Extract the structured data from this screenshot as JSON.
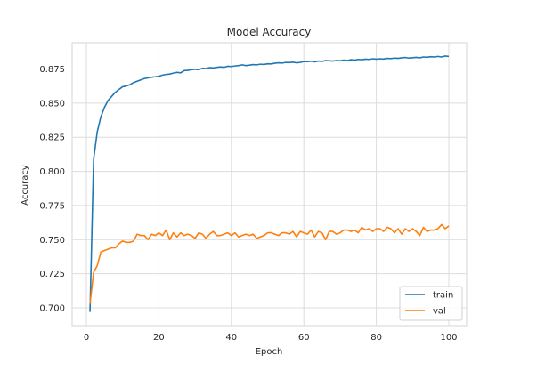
{
  "chart_data": {
    "type": "line",
    "title": "Model Accuracy",
    "xlabel": "Epoch",
    "ylabel": "Accuracy",
    "xlim": [
      -4,
      105
    ],
    "ylim": [
      0.687,
      0.891
    ],
    "xticks": [
      0,
      20,
      40,
      60,
      80,
      100
    ],
    "xtick_labels": [
      "0",
      "20",
      "40",
      "60",
      "80",
      "100"
    ],
    "yticks": [
      0.7,
      0.725,
      0.75,
      0.775,
      0.8,
      0.825,
      0.85,
      0.875
    ],
    "ytick_labels": [
      "0.700",
      "0.725",
      "0.750",
      "0.775",
      "0.800",
      "0.825",
      "0.850",
      "0.875"
    ],
    "grid": true,
    "legend_position": "lower right",
    "series": [
      {
        "name": "train",
        "color": "#1f77b4",
        "x": [
          1,
          2,
          3,
          4,
          5,
          6,
          7,
          8,
          9,
          10,
          11,
          12,
          13,
          14,
          15,
          16,
          17,
          18,
          19,
          20,
          21,
          22,
          23,
          24,
          25,
          26,
          27,
          28,
          29,
          30,
          31,
          32,
          33,
          34,
          35,
          36,
          37,
          38,
          39,
          40,
          41,
          42,
          43,
          44,
          45,
          46,
          47,
          48,
          49,
          50,
          51,
          52,
          53,
          54,
          55,
          56,
          57,
          58,
          59,
          60,
          61,
          62,
          63,
          64,
          65,
          66,
          67,
          68,
          69,
          70,
          71,
          72,
          73,
          74,
          75,
          76,
          77,
          78,
          79,
          80,
          81,
          82,
          83,
          84,
          85,
          86,
          87,
          88,
          89,
          90,
          91,
          92,
          93,
          94,
          95,
          96,
          97,
          98,
          99,
          100
        ],
        "values": [
          0.697,
          0.809,
          0.829,
          0.84,
          0.847,
          0.852,
          0.855,
          0.858,
          0.86,
          0.862,
          0.8625,
          0.8635,
          0.865,
          0.866,
          0.867,
          0.868,
          0.8685,
          0.869,
          0.8693,
          0.8697,
          0.8705,
          0.871,
          0.8713,
          0.872,
          0.8725,
          0.8722,
          0.8738,
          0.874,
          0.8745,
          0.8748,
          0.8745,
          0.8755,
          0.8753,
          0.876,
          0.8758,
          0.8762,
          0.8765,
          0.8762,
          0.877,
          0.8768,
          0.8772,
          0.8775,
          0.878,
          0.8775,
          0.8778,
          0.8782,
          0.878,
          0.8785,
          0.8783,
          0.8788,
          0.8787,
          0.8792,
          0.8795,
          0.8793,
          0.8798,
          0.8797,
          0.88,
          0.8795,
          0.8798,
          0.8805,
          0.8803,
          0.8807,
          0.8802,
          0.8808,
          0.8806,
          0.8812,
          0.881,
          0.8808,
          0.8812,
          0.881,
          0.8815,
          0.8812,
          0.8818,
          0.8815,
          0.882,
          0.8818,
          0.8822,
          0.882,
          0.8825,
          0.8822,
          0.8825,
          0.8823,
          0.8828,
          0.8826,
          0.883,
          0.8828,
          0.8832,
          0.8834,
          0.883,
          0.8833,
          0.8835,
          0.8832,
          0.8838,
          0.8836,
          0.884,
          0.8838,
          0.8842,
          0.8838,
          0.8845,
          0.8842
        ]
      },
      {
        "name": "val",
        "color": "#ff7f0e",
        "x": [
          1,
          2,
          3,
          4,
          5,
          6,
          7,
          8,
          9,
          10,
          11,
          12,
          13,
          14,
          15,
          16,
          17,
          18,
          19,
          20,
          21,
          22,
          23,
          24,
          25,
          26,
          27,
          28,
          29,
          30,
          31,
          32,
          33,
          34,
          35,
          36,
          37,
          38,
          39,
          40,
          41,
          42,
          43,
          44,
          45,
          46,
          47,
          48,
          49,
          50,
          51,
          52,
          53,
          54,
          55,
          56,
          57,
          58,
          59,
          60,
          61,
          62,
          63,
          64,
          65,
          66,
          67,
          68,
          69,
          70,
          71,
          72,
          73,
          74,
          75,
          76,
          77,
          78,
          79,
          80,
          81,
          82,
          83,
          84,
          85,
          86,
          87,
          88,
          89,
          90,
          91,
          92,
          93,
          94,
          95,
          96,
          97,
          98,
          99,
          100
        ],
        "values": [
          0.703,
          0.726,
          0.731,
          0.741,
          0.742,
          0.743,
          0.744,
          0.744,
          0.747,
          0.749,
          0.748,
          0.748,
          0.749,
          0.754,
          0.753,
          0.753,
          0.75,
          0.754,
          0.753,
          0.755,
          0.753,
          0.757,
          0.75,
          0.755,
          0.752,
          0.755,
          0.753,
          0.754,
          0.753,
          0.751,
          0.755,
          0.754,
          0.751,
          0.754,
          0.756,
          0.753,
          0.753,
          0.754,
          0.755,
          0.753,
          0.755,
          0.752,
          0.753,
          0.754,
          0.753,
          0.754,
          0.751,
          0.752,
          0.753,
          0.755,
          0.755,
          0.754,
          0.753,
          0.755,
          0.755,
          0.754,
          0.756,
          0.752,
          0.756,
          0.755,
          0.754,
          0.757,
          0.752,
          0.756,
          0.755,
          0.75,
          0.756,
          0.756,
          0.754,
          0.755,
          0.757,
          0.757,
          0.756,
          0.757,
          0.755,
          0.759,
          0.757,
          0.758,
          0.756,
          0.758,
          0.758,
          0.756,
          0.759,
          0.758,
          0.755,
          0.758,
          0.754,
          0.758,
          0.756,
          0.758,
          0.756,
          0.753,
          0.759,
          0.756,
          0.757,
          0.757,
          0.758,
          0.761,
          0.758,
          0.76
        ]
      }
    ]
  }
}
